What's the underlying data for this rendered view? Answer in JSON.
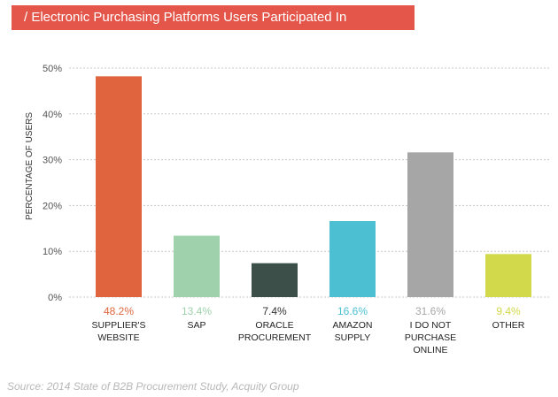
{
  "header": {
    "title": "/ Electronic Purchasing Platforms Users Participated In"
  },
  "footer": {
    "source": "Source: 2014 State of B2B Procurement Study, Acquity Group"
  },
  "chart_data": {
    "type": "bar",
    "ylabel": "PERCENTAGE OF USERS",
    "xlabel": "",
    "ylim": [
      0,
      50
    ],
    "yticks": [
      "0%",
      "10%",
      "20%",
      "30%",
      "40%",
      "50%"
    ],
    "grid": true,
    "categories": [
      [
        "SUPPLIER'S",
        "WEBSITE"
      ],
      [
        "SAP"
      ],
      [
        "ORACLE",
        "PROCUREMENT"
      ],
      [
        "AMAZON",
        "SUPPLY"
      ],
      [
        "I DO NOT",
        "PURCHASE",
        "ONLINE"
      ],
      [
        "OTHER"
      ]
    ],
    "values": [
      48.2,
      13.4,
      7.4,
      16.6,
      31.6,
      9.4
    ],
    "value_labels": [
      "48.2%",
      "13.4%",
      "7.4%",
      "16.6%",
      "31.6%",
      "9.4%"
    ],
    "colors": [
      "#e0653f",
      "#9ed1ac",
      "#3c4f48",
      "#4cc0d2",
      "#a6a6a6",
      "#d2d94a"
    ],
    "label_colors": [
      "#e0653f",
      "#9ed1ac",
      "#333333",
      "#4cc0d2",
      "#a6a6a6",
      "#d2d94a"
    ]
  }
}
